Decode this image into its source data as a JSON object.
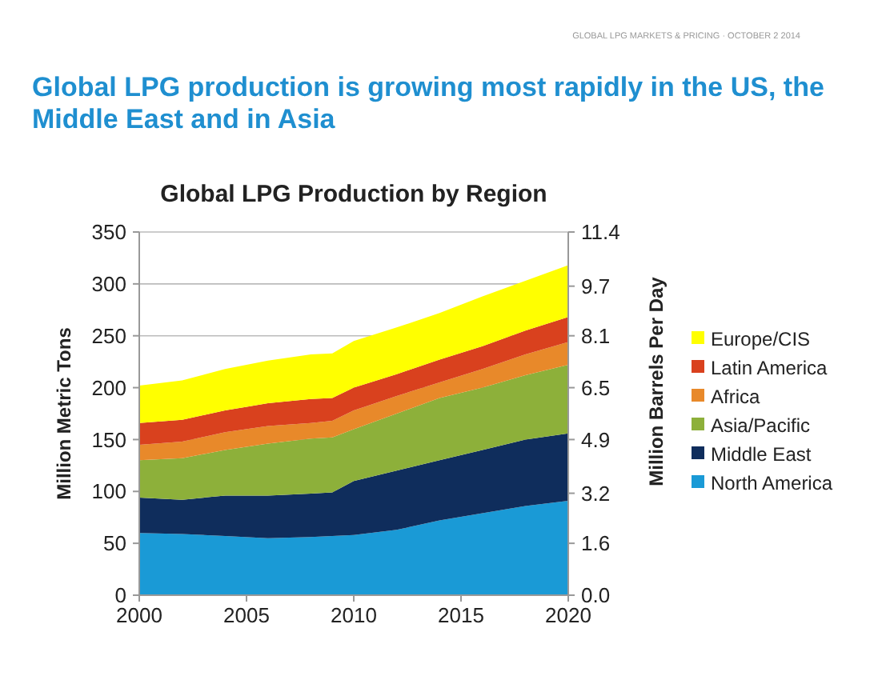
{
  "chart_data": {
    "type": "area",
    "stacked": true,
    "title": "Global LPG production is growing most rapidly in the US, the Middle East and in Asia",
    "subtitle": "Global LPG Production by Region",
    "annotations": [
      "GLOBAL LPG MARKETS & PRICING · OCTOBER 2 2014"
    ],
    "ylabel": "Million Metric Tons",
    "y2label": "Million Barrels Per Day",
    "x": [
      2000,
      2002,
      2004,
      2006,
      2008,
      2009,
      2010,
      2012,
      2014,
      2016,
      2018,
      2020
    ],
    "xlim": [
      2000,
      2020
    ],
    "xticks": [
      2000,
      2005,
      2010,
      2015,
      2020
    ],
    "ylim": [
      0,
      350
    ],
    "yticks": [
      0,
      50,
      100,
      150,
      200,
      250,
      300,
      350
    ],
    "y2lim": [
      0,
      11.4
    ],
    "y2ticks": [
      {
        "value": 0,
        "label": "0.0"
      },
      {
        "value": 1.629,
        "label": "1.6"
      },
      3.2,
      {
        "value": 4.886,
        "label": "4.9"
      },
      {
        "value": 6.514,
        "label": "6.5"
      },
      {
        "value": 8.143,
        "label": "8.1"
      },
      9.7,
      {
        "value": 11.4,
        "label": "11.4"
      }
    ],
    "grid": "y",
    "legend": "right",
    "series": [
      {
        "name": "North America",
        "color": "#1a9ad6",
        "values": [
          60,
          59,
          57,
          55,
          56,
          57,
          58,
          63,
          72,
          79,
          86,
          91
        ]
      },
      {
        "name": "Middle East",
        "color": "#0f2d5c",
        "values": [
          34,
          33,
          39,
          41,
          42,
          42,
          52,
          57,
          58,
          61,
          64,
          65
        ]
      },
      {
        "name": "Asia/Pacific",
        "color": "#8db03a",
        "values": [
          36,
          40,
          44,
          50,
          53,
          53,
          50,
          55,
          60,
          60,
          62,
          66
        ]
      },
      {
        "name": "Africa",
        "color": "#e8892a",
        "values": [
          15,
          16,
          17,
          17,
          15,
          16,
          18,
          17,
          15,
          18,
          20,
          22
        ]
      },
      {
        "name": "Latin America",
        "color": "#d9411e",
        "values": [
          21,
          21,
          21,
          22,
          23,
          22,
          22,
          21,
          22,
          22,
          23,
          24
        ]
      },
      {
        "name": "Europe/CIS",
        "color": "#ffff00",
        "values": [
          36,
          38,
          40,
          41,
          43,
          43,
          45,
          45,
          45,
          48,
          48,
          50
        ]
      }
    ]
  }
}
